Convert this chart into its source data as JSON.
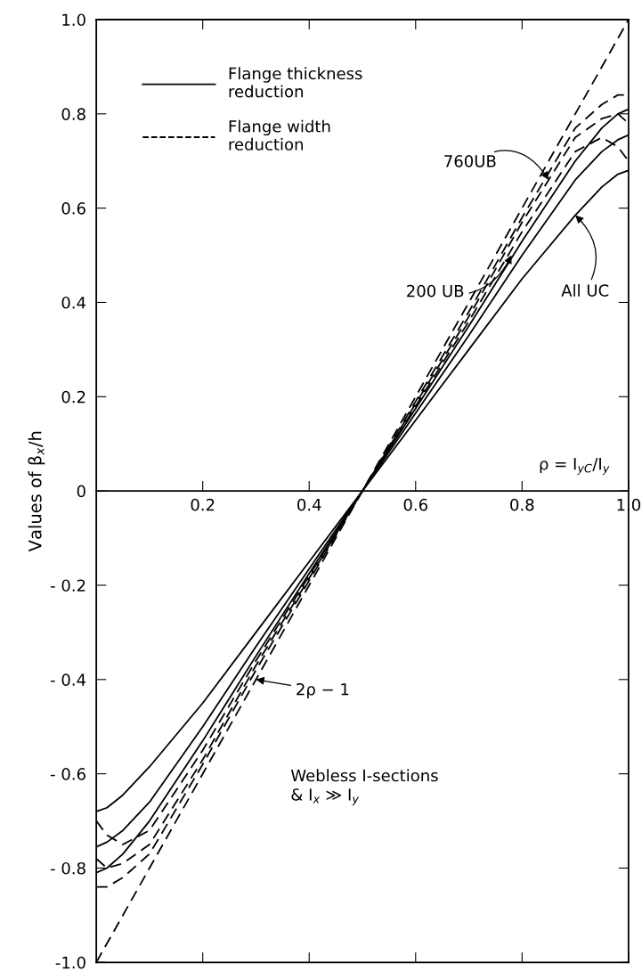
{
  "chart_data": {
    "type": "line",
    "ylabel": "Values of β$_{x}$/h",
    "x": [
      0,
      0.02,
      0.05,
      0.1,
      0.2,
      0.3,
      0.4,
      0.5,
      0.6,
      0.7,
      0.8,
      0.9,
      0.95,
      0.98,
      1.0
    ],
    "series": [
      {
        "name": "Flange thickness\nreduction",
        "color": "#000000",
        "line_style": "solid",
        "values": [
          -0.68,
          -0.672,
          -0.645,
          -0.585,
          -0.45,
          -0.3,
          -0.15,
          0,
          0.15,
          0.3,
          0.45,
          0.585,
          0.645,
          0.672,
          0.68
        ]
      },
      {
        "color": "#000000",
        "line_style": "solid",
        "values": [
          -0.755,
          -0.745,
          -0.72,
          -0.66,
          -0.5,
          -0.33,
          -0.165,
          0,
          0.165,
          0.33,
          0.5,
          0.66,
          0.72,
          0.745,
          0.755
        ]
      },
      {
        "color": "#000000",
        "line_style": "solid",
        "values": [
          -0.81,
          -0.8,
          -0.77,
          -0.7,
          -0.53,
          -0.35,
          -0.175,
          0,
          0.175,
          0.35,
          0.53,
          0.7,
          0.77,
          0.8,
          0.81
        ]
      },
      {
        "name": "Flange width\nreduction",
        "color": "#000000",
        "line_style": "dashed",
        "values": [
          -0.7,
          -0.73,
          -0.75,
          -0.72,
          -0.55,
          -0.36,
          -0.18,
          0,
          0.18,
          0.36,
          0.55,
          0.72,
          0.75,
          0.73,
          0.7
        ]
      },
      {
        "color": "#000000",
        "line_style": "dashed",
        "values": [
          -0.78,
          -0.8,
          -0.79,
          -0.75,
          -0.57,
          -0.37,
          -0.185,
          0,
          0.185,
          0.37,
          0.57,
          0.75,
          0.79,
          0.8,
          0.78
        ]
      },
      {
        "color": "#000000",
        "line_style": "dashed",
        "values": [
          -0.84,
          -0.84,
          -0.82,
          -0.77,
          -0.58,
          -0.38,
          -0.19,
          0,
          0.19,
          0.38,
          0.58,
          0.77,
          0.82,
          0.84,
          0.84
        ]
      },
      {
        "color": "#000000",
        "line_style": "dashed",
        "x": [
          0,
          1
        ],
        "values": [
          -1,
          1
        ]
      }
    ],
    "xlim": [
      0,
      1
    ],
    "ylim": [
      -1,
      1
    ],
    "xticks": [
      0.2,
      0.4,
      0.6,
      0.8,
      {
        "value": 1.0,
        "label": "1.0"
      }
    ],
    "yticks": [
      {
        "value": 1.0,
        "label": "1.0"
      },
      {
        "value": 0.8,
        "label": "0.8"
      },
      {
        "value": 0.6,
        "label": "0.6"
      },
      {
        "value": 0.4,
        "label": "0.4"
      },
      {
        "value": 0.2,
        "label": "0.2"
      },
      {
        "value": 0,
        "label": "0"
      },
      {
        "value": -0.2,
        "label": "- 0.2"
      },
      {
        "value": -0.4,
        "label": "- 0.4"
      },
      {
        "value": -0.6,
        "label": "- 0.6"
      },
      {
        "value": -0.8,
        "label": "- 0.8"
      },
      {
        "value": -1.0,
        "label": "-1.0"
      }
    ],
    "legend": "top left",
    "annotations": [
      {
        "text": "760UB",
        "x": 0.85,
        "y": 0.66
      },
      {
        "text": "200 UB",
        "x": 0.78,
        "y": 0.5
      },
      {
        "text": "All UC",
        "x": 0.9,
        "y": 0.585
      },
      {
        "text": "2ρ − 1",
        "x": 0.3,
        "y": -0.4
      },
      "Webless I-sections\n& I$_{x}$ ≫ I$_{y}$",
      "ρ = I$_{yC}$/I$_{y}$"
    ]
  }
}
